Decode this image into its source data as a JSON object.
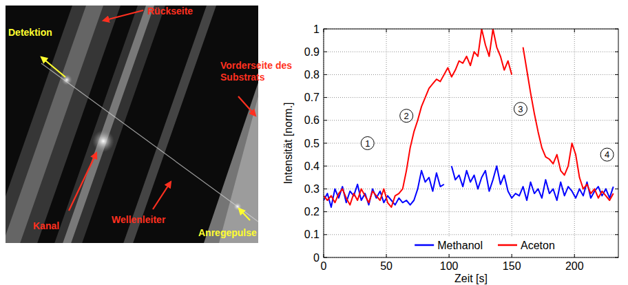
{
  "photo": {
    "labels": [
      {
        "text": "Rückseite",
        "color": "#ff3020"
      },
      {
        "text": "Detektion",
        "color": "#ffff30"
      },
      {
        "text": "Vorderseite des Substrats",
        "color": "#ff3020"
      },
      {
        "text": "Kanal",
        "color": "#ff3020"
      },
      {
        "text": "Wellenleiter",
        "color": "#ff3020"
      },
      {
        "text": "Anregepulse",
        "color": "#ffff30"
      }
    ]
  },
  "chart_data": {
    "type": "line",
    "xlabel": "Zeit [s]",
    "ylabel": "Intensität [norm.]",
    "x": [
      0,
      3,
      6,
      9,
      12,
      15,
      18,
      21,
      24,
      27,
      30,
      33,
      36,
      39,
      42,
      45,
      48,
      51,
      54,
      57,
      60,
      63,
      66,
      69,
      72,
      75,
      78,
      81,
      84,
      87,
      90,
      93,
      96,
      99,
      102,
      105,
      108,
      111,
      114,
      117,
      120,
      123,
      126,
      129,
      132,
      135,
      138,
      141,
      144,
      147,
      150,
      153,
      156,
      159,
      162,
      165,
      168,
      171,
      174,
      177,
      180,
      183,
      186,
      189,
      192,
      195,
      198,
      201,
      204,
      207,
      210,
      213,
      216,
      219,
      222,
      225,
      228,
      231
    ],
    "series": [
      {
        "name": "Methanol",
        "color": "#0000ff",
        "values": [
          0.25,
          0.28,
          0.22,
          0.3,
          0.26,
          0.31,
          0.24,
          0.29,
          0.27,
          0.32,
          0.25,
          0.28,
          0.23,
          0.3,
          0.26,
          0.29,
          0.24,
          0.27,
          0.25,
          0.23,
          0.26,
          0.24,
          0.25,
          0.23,
          0.25,
          0.3,
          0.38,
          0.33,
          0.35,
          0.29,
          0.37,
          0.31,
          0.32,
          null,
          0.4,
          0.34,
          0.36,
          0.31,
          0.38,
          0.33,
          0.36,
          0.3,
          0.35,
          0.38,
          0.29,
          0.34,
          0.4,
          0.32,
          0.36,
          0.29,
          0.26,
          0.28,
          0.27,
          0.31,
          0.25,
          0.33,
          0.28,
          0.3,
          0.26,
          0.34,
          0.28,
          0.3,
          0.25,
          0.33,
          0.27,
          0.31,
          0.29,
          0.26,
          0.3,
          0.27,
          0.33,
          0.26,
          0.29,
          0.31,
          0.27,
          0.3,
          0.26,
          0.31
        ]
      },
      {
        "name": "Aceton",
        "color": "#ff0000",
        "values": [
          0.27,
          0.25,
          0.27,
          0.24,
          0.28,
          0.3,
          0.26,
          0.23,
          0.28,
          0.25,
          0.3,
          0.27,
          0.24,
          0.29,
          0.27,
          0.25,
          0.3,
          0.24,
          0.22,
          0.27,
          0.28,
          0.3,
          0.38,
          0.48,
          0.55,
          0.6,
          0.66,
          0.7,
          0.74,
          0.76,
          0.78,
          0.77,
          0.8,
          0.83,
          0.79,
          0.82,
          0.86,
          0.85,
          0.88,
          0.84,
          0.9,
          0.88,
          1.0,
          0.93,
          0.88,
          1.0,
          0.92,
          0.88,
          0.82,
          0.86,
          0.8,
          null,
          null,
          0.92,
          0.82,
          0.72,
          0.63,
          0.55,
          0.48,
          0.44,
          0.43,
          0.41,
          0.45,
          0.38,
          0.36,
          0.4,
          0.5,
          0.45,
          0.35,
          0.3,
          0.32,
          0.28,
          0.3,
          0.26,
          0.29,
          0.27,
          0.25,
          0.28
        ]
      }
    ],
    "xlim": [
      0,
      235
    ],
    "ylim": [
      0,
      1
    ],
    "xticks": [
      0,
      50,
      100,
      150,
      200
    ],
    "yticks": [
      0,
      0.1,
      0.2,
      0.3,
      0.4,
      0.5,
      0.6,
      0.7,
      0.8,
      0.9,
      1
    ],
    "grid": true,
    "legend": "bottom",
    "annotations": [
      {
        "text": "1",
        "x": 35,
        "y": 0.5
      },
      {
        "text": "2",
        "x": 66,
        "y": 0.62
      },
      {
        "text": "3",
        "x": 157,
        "y": 0.65
      },
      {
        "text": "4",
        "x": 226,
        "y": 0.45
      }
    ]
  }
}
